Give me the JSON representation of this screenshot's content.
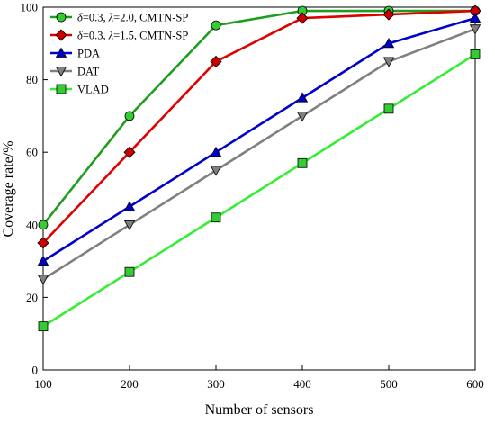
{
  "chart_data": {
    "type": "line",
    "xlabel": "Number of sensors",
    "ylabel": "Coverage rate/%",
    "xlim": [
      100,
      600
    ],
    "ylim": [
      0,
      100
    ],
    "x_ticks": [
      100,
      200,
      300,
      400,
      500,
      600
    ],
    "y_ticks": [
      0,
      20,
      40,
      60,
      80,
      100
    ],
    "grid": false,
    "legend_position": "top-left",
    "x": [
      100,
      200,
      300,
      400,
      500,
      600
    ],
    "series": [
      {
        "name_parts": [
          {
            "text": "δ",
            "italic": true
          },
          {
            "text": "=0.3, ",
            "italic": false
          },
          {
            "text": "λ",
            "italic": true
          },
          {
            "text": "=2.0, CMTN-SP",
            "italic": false
          }
        ],
        "color": "#1e9e1e",
        "fill": "#33cc33",
        "marker": "circle",
        "values": [
          40,
          70,
          95,
          99,
          99,
          99
        ]
      },
      {
        "name_parts": [
          {
            "text": "δ",
            "italic": true
          },
          {
            "text": "=0.3, ",
            "italic": false
          },
          {
            "text": "λ",
            "italic": true
          },
          {
            "text": "=1.5, CMTN-SP",
            "italic": false
          }
        ],
        "color": "#e00000",
        "fill": "#cc0000",
        "marker": "diamond",
        "values": [
          35,
          60,
          85,
          97,
          98,
          99
        ]
      },
      {
        "name_parts": [
          {
            "text": "PDA",
            "italic": false
          }
        ],
        "color": "#0000cc",
        "fill": "#0000cc",
        "marker": "triangle-up",
        "values": [
          30,
          45,
          60,
          75,
          90,
          97
        ]
      },
      {
        "name_parts": [
          {
            "text": "DAT",
            "italic": false
          }
        ],
        "color": "#808080",
        "fill": "#808080",
        "marker": "triangle-down",
        "values": [
          25,
          40,
          55,
          70,
          85,
          94
        ]
      },
      {
        "name_parts": [
          {
            "text": "VLAD",
            "italic": false
          }
        ],
        "color": "#33ee33",
        "fill": "#33cc33",
        "marker": "square",
        "values": [
          12,
          27,
          42,
          57,
          72,
          87
        ]
      }
    ]
  }
}
